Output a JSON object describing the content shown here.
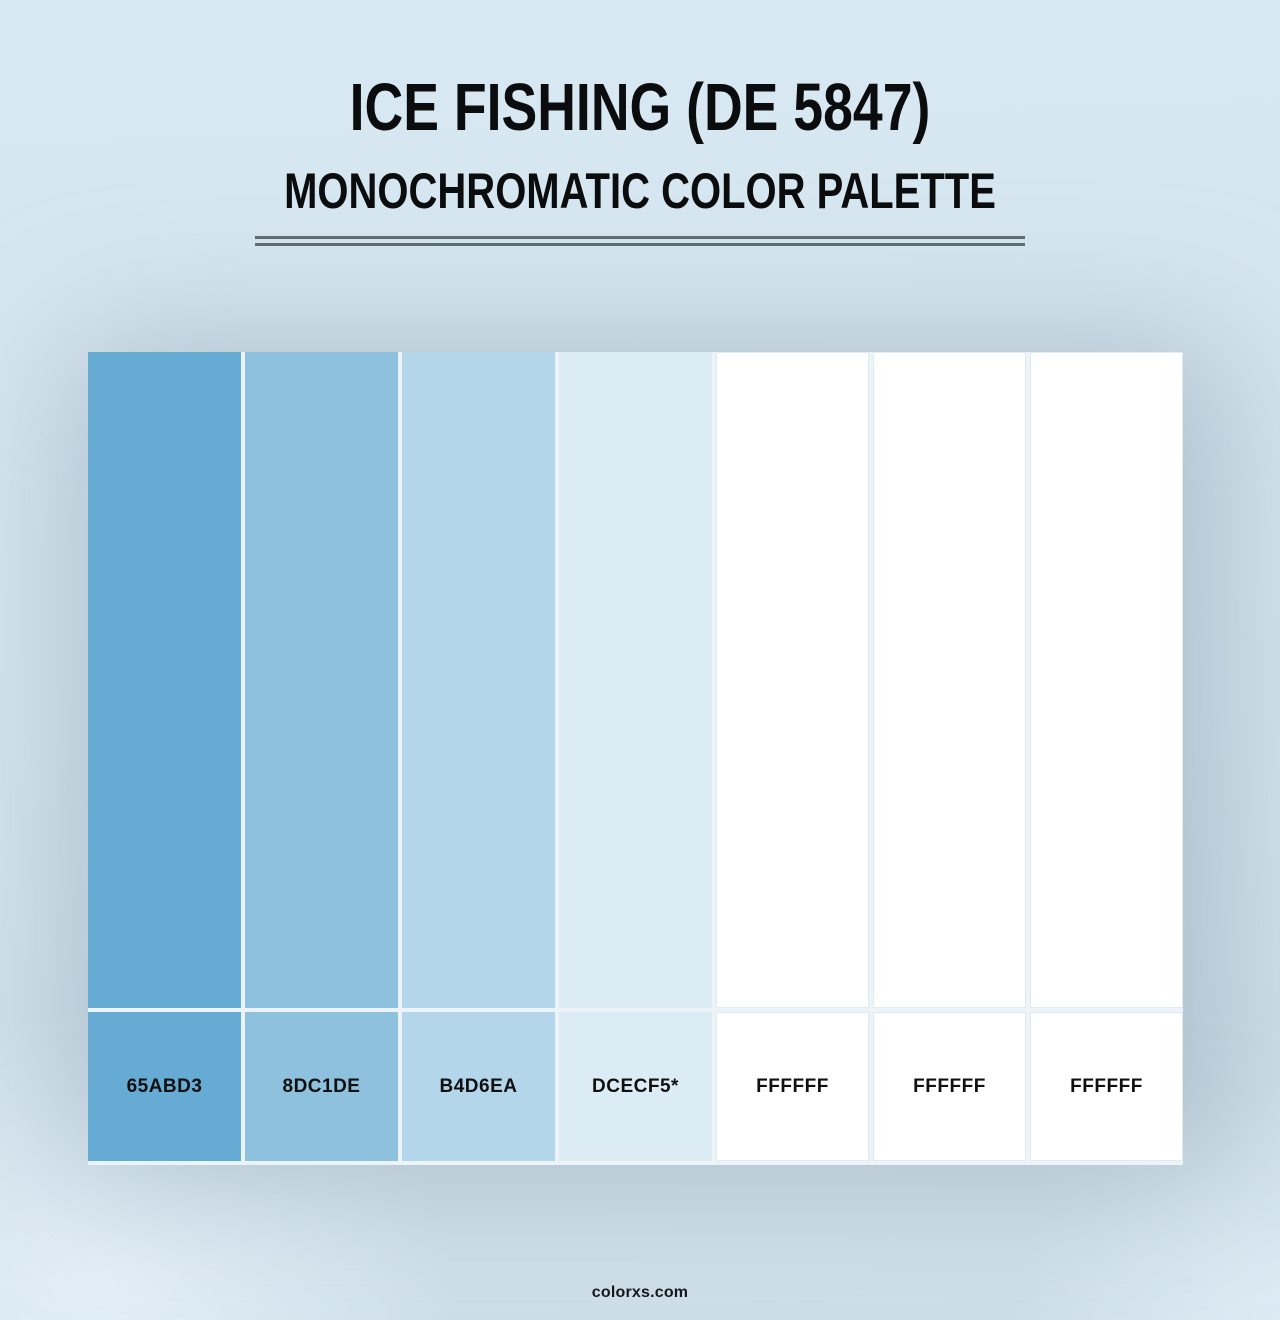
{
  "header": {
    "title": "ICE FISHING (DE 5847)",
    "subtitle": "MONOCHROMATIC COLOR PALETTE"
  },
  "palette": {
    "swatches": [
      {
        "hex_label": "65ABD3",
        "color": "#65ABD3"
      },
      {
        "hex_label": "8DC1DE",
        "color": "#8DC1DE"
      },
      {
        "hex_label": "B4D6EA",
        "color": "#B4D6EA"
      },
      {
        "hex_label": "DCECF5*",
        "color": "#DCECF5"
      },
      {
        "hex_label": "FFFFFF",
        "color": "#FFFFFF"
      },
      {
        "hex_label": "FFFFFF",
        "color": "#FFFFFF"
      },
      {
        "hex_label": "FFFFFF",
        "color": "#FFFFFF"
      }
    ]
  },
  "footer": {
    "site_name": "colorxs.com"
  },
  "colors": {
    "title_text": "#0B0C0D",
    "swatch_label_text": "#101010",
    "divider_line": "#5F6C72",
    "page_background": "#D8E8F2"
  }
}
